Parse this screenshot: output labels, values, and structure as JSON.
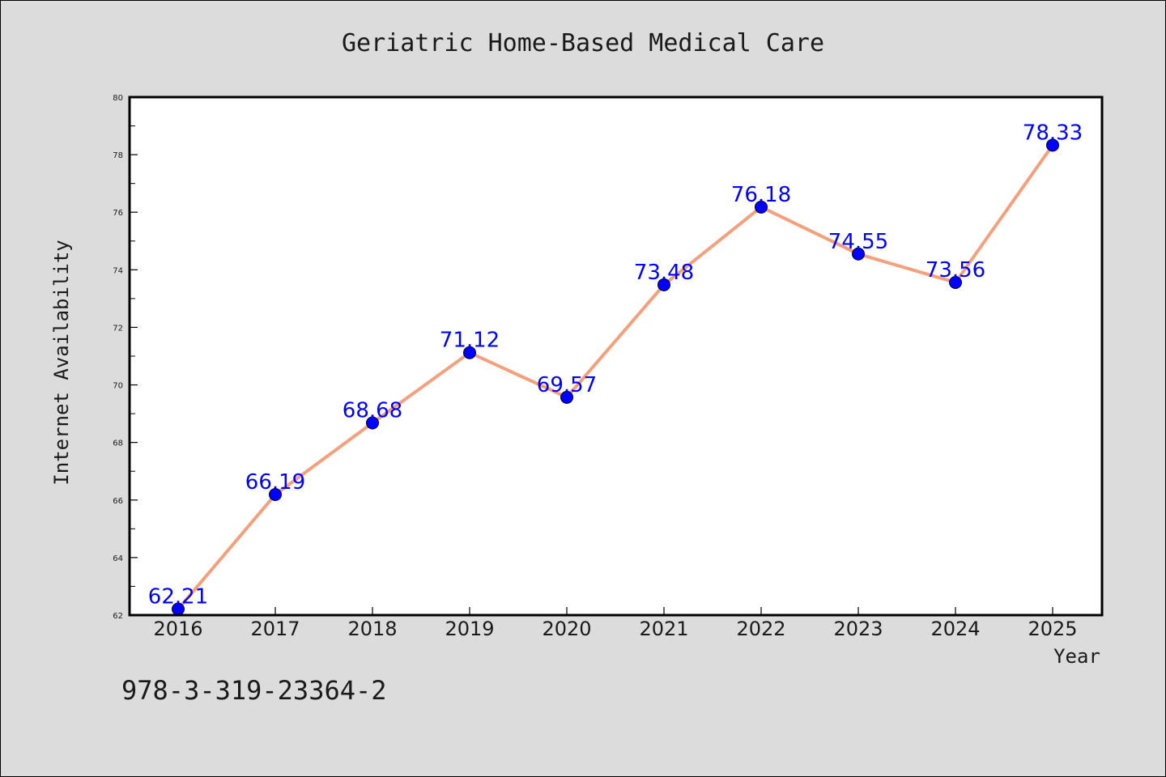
{
  "chart_data": {
    "type": "line",
    "title": "Geriatric Home-Based Medical Care",
    "xlabel": "Year",
    "ylabel": "Internet Availability",
    "categories": [
      "2016",
      "2017",
      "2018",
      "2019",
      "2020",
      "2021",
      "2022",
      "2023",
      "2024",
      "2025"
    ],
    "series": [
      {
        "values": [
          62.21,
          66.19,
          68.68,
          71.12,
          69.57,
          73.48,
          76.18,
          74.55,
          73.56,
          78.33
        ],
        "data_labels": [
          "62.21",
          "66.19",
          "68.68",
          "71.12",
          "69.57",
          "73.48",
          "76.18",
          "74.55",
          "73.56",
          "78.33"
        ],
        "line_color": "#f4a07c",
        "marker_color": "#0000ff"
      }
    ],
    "ylim": [
      62,
      80
    ],
    "yticks": [
      62,
      64,
      66,
      68,
      70,
      72,
      74,
      76,
      78,
      80
    ],
    "ytick_labels": [
      "62",
      "64",
      "66",
      "68",
      "70",
      "72",
      "74",
      "76",
      "78",
      "80"
    ],
    "grid": false,
    "legend": "none"
  },
  "footnote": "978-3-319-23364-2",
  "colors": {
    "background": "#dcdcdc",
    "plot_background": "#ffffff",
    "line": "#f4a07c",
    "marker": "#0000ff",
    "data_label": "#0000ff"
  }
}
